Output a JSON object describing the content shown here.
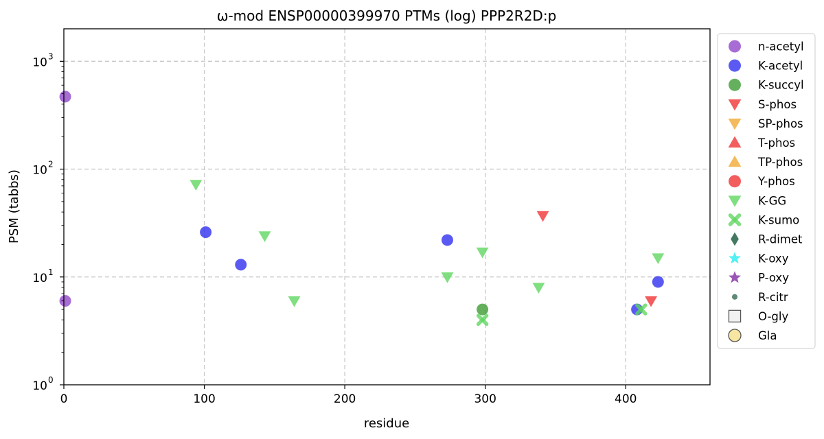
{
  "chart_data": {
    "type": "scatter",
    "title": "ω-mod ENSP00000399970 PTMs (log) PPP2R2D:p",
    "xlabel": "residue",
    "ylabel": "PSM (tabbs)",
    "xlim": [
      0,
      460
    ],
    "ylim": [
      1,
      2000
    ],
    "y_scale": "log",
    "grid": true,
    "legend_position": "right, outside plot",
    "x_ticks": [
      {
        "value": 0,
        "label": "0"
      },
      {
        "value": 100,
        "label": "100"
      },
      {
        "value": 200,
        "label": "200"
      },
      {
        "value": 300,
        "label": "300"
      },
      {
        "value": 400,
        "label": "400"
      }
    ],
    "y_ticks": [
      {
        "value": 1,
        "base": "10",
        "exp": "0"
      },
      {
        "value": 10,
        "base": "10",
        "exp": "1"
      },
      {
        "value": 100,
        "base": "10",
        "exp": "2"
      },
      {
        "value": 1000,
        "base": "10",
        "exp": "3"
      }
    ],
    "series": [
      {
        "name": "n-acetyl",
        "marker": "circle",
        "color": "#8e44c8",
        "points": [
          [
            1,
            470
          ],
          [
            1,
            6
          ]
        ]
      },
      {
        "name": "K-acetyl",
        "marker": "circle",
        "color": "#2b2bf0",
        "points": [
          [
            101,
            26
          ],
          [
            126,
            13
          ],
          [
            273,
            22
          ],
          [
            408,
            5
          ],
          [
            423,
            9
          ]
        ]
      },
      {
        "name": "K-succyl",
        "marker": "circle",
        "color": "#3a9a30",
        "points": [
          [
            298,
            5
          ]
        ]
      },
      {
        "name": "S-phos",
        "marker": "triangle-down",
        "color": "#f03030",
        "points": [
          [
            341,
            37
          ]
        ]
      },
      {
        "name": "SP-phos",
        "marker": "triangle-down",
        "color": "#f0a830",
        "points": []
      },
      {
        "name": "T-phos",
        "marker": "triangle-up",
        "color": "#f03030",
        "points": []
      },
      {
        "name": "TP-phos",
        "marker": "triangle-up",
        "color": "#f0a830",
        "points": []
      },
      {
        "name": "Y-phos",
        "marker": "circle",
        "color": "#f03030",
        "points": []
      },
      {
        "name": "K-GG",
        "marker": "triangle-down",
        "color": "#5cd65c",
        "points": [
          [
            94,
            72
          ],
          [
            143,
            24
          ],
          [
            164,
            6
          ],
          [
            273,
            10
          ],
          [
            298,
            17
          ],
          [
            338,
            8
          ],
          [
            423,
            15
          ]
        ]
      },
      {
        "name": "K-sumo",
        "marker": "x",
        "color": "#5cd65c",
        "points": [
          [
            298,
            4
          ],
          [
            411,
            5
          ]
        ]
      },
      {
        "name": "R-dimet",
        "marker": "diamond",
        "color": "#2f6a50",
        "points": []
      },
      {
        "name": "K-oxy",
        "marker": "star",
        "color": "#40f0f0",
        "points": []
      },
      {
        "name": "P-oxy",
        "marker": "star",
        "color": "#8e44ad",
        "points": []
      },
      {
        "name": "R-citr",
        "marker": "small-circle",
        "color": "#2f6a50",
        "points": []
      },
      {
        "name": "O-gly",
        "marker": "square-open",
        "color": "#555555",
        "points": []
      },
      {
        "name": "Gla",
        "marker": "circle-open",
        "color": "#f5e08a",
        "points": []
      }
    ],
    "extra_points": [
      {
        "marker": "triangle-down",
        "color": "#f03030",
        "x": 418,
        "y": 6
      }
    ]
  }
}
